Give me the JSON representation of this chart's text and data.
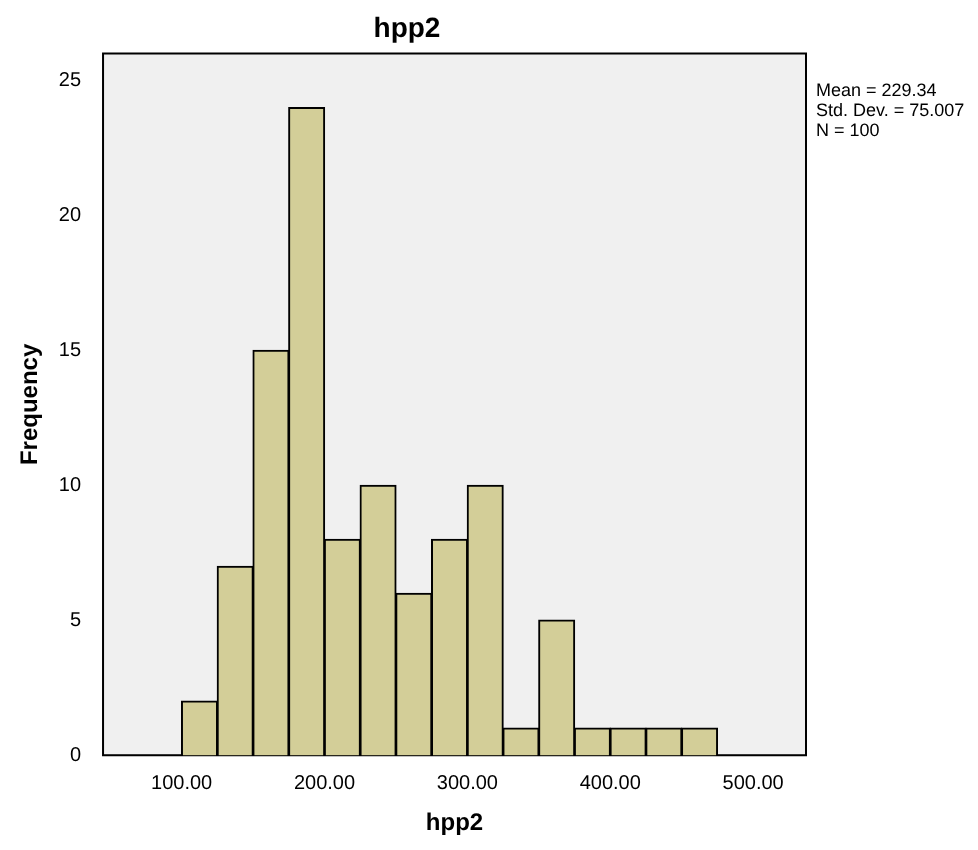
{
  "chart_data": {
    "type": "histogram",
    "title": "hpp2",
    "xlabel": "hpp2",
    "ylabel": "Frequency",
    "bins": [
      100,
      125,
      150,
      175,
      200,
      225,
      250,
      275,
      300,
      325,
      350,
      375,
      400,
      425,
      450,
      475
    ],
    "values": [
      2,
      7,
      15,
      24,
      8,
      10,
      6,
      8,
      10,
      1,
      5,
      1,
      1,
      1,
      1
    ],
    "color": "#d3ce98",
    "xlim": [
      45,
      537
    ],
    "xticks": [
      {
        "value": 100,
        "label": "100.00"
      },
      {
        "value": 200,
        "label": "200.00"
      },
      {
        "value": 300,
        "label": "300.00"
      },
      {
        "value": 400,
        "label": "400.00"
      },
      {
        "value": 500,
        "label": "500.00"
      }
    ],
    "ylim": [
      0,
      26
    ],
    "yticks": [
      0,
      5,
      10,
      15,
      20,
      25
    ],
    "grid": false,
    "legend": false,
    "annotations": [
      "Mean = 229.34",
      "Std. Dev. = 75.007",
      "N = 100"
    ]
  }
}
